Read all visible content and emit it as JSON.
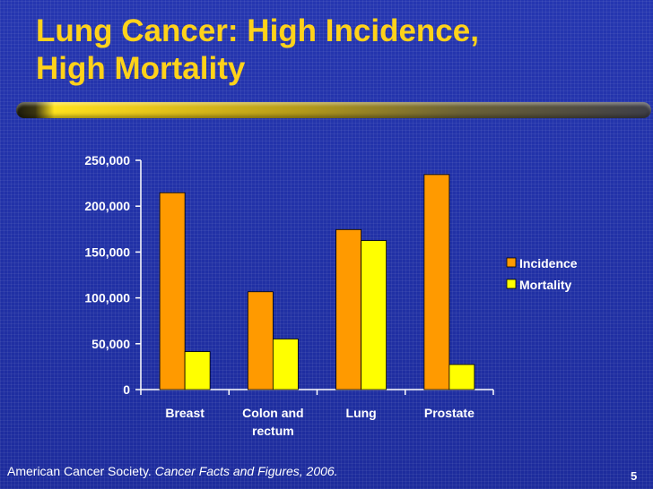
{
  "slide": {
    "title_line1": "Lung Cancer: High Incidence,",
    "title_line2": "High Mortality",
    "source_prefix": "American Cancer Society. ",
    "source_italic": "Cancer Facts and Figures, 2006.",
    "page_number": "5"
  },
  "colors": {
    "incidence": "#ff9a00",
    "mortality": "#ffff00",
    "title": "#ffd21a",
    "axis": "#ffffff"
  },
  "chart_data": {
    "type": "bar",
    "categories": [
      [
        "Breast"
      ],
      [
        "Colon and",
        "rectum"
      ],
      [
        "Lung"
      ],
      [
        "Prostate"
      ]
    ],
    "series": [
      {
        "name": "Incidence",
        "values": [
          214640,
          106680,
          174470,
          234460
        ]
      },
      {
        "name": "Mortality",
        "values": [
          41430,
          55170,
          162460,
          27350
        ]
      }
    ],
    "yticks": [
      "0",
      "50,000",
      "100,000",
      "150,000",
      "200,000",
      "250,000"
    ],
    "ylim": [
      0,
      250000
    ],
    "legend_position": "right",
    "grid": false,
    "title": "",
    "xlabel": "",
    "ylabel": ""
  }
}
